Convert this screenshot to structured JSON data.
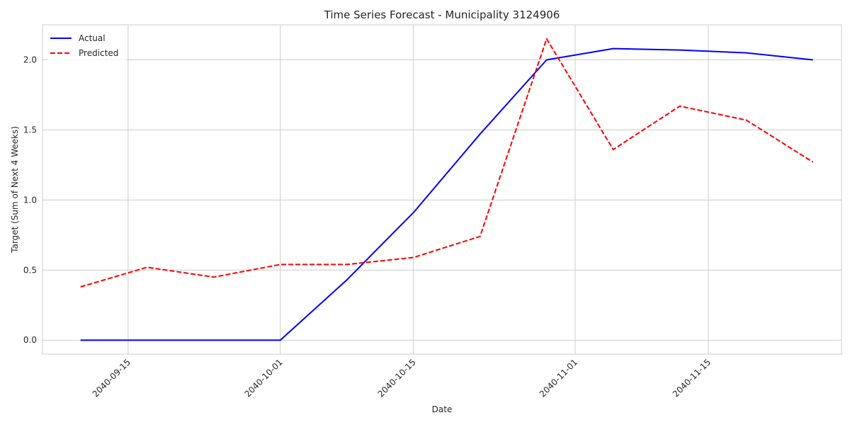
{
  "chart_data": {
    "type": "line",
    "title": "Time Series Forecast - Municipality 3124906",
    "xlabel": "Date",
    "ylabel": "Target (Sum of Next 4 Weeks)",
    "x": [
      "2040-09-10",
      "2040-09-17",
      "2040-09-24",
      "2040-10-01",
      "2040-10-08",
      "2040-10-15",
      "2040-10-22",
      "2040-10-29",
      "2040-11-05",
      "2040-11-12",
      "2040-11-19",
      "2040-11-26"
    ],
    "xlim": [
      "2040-09-06",
      "2040-11-29"
    ],
    "ylim": [
      -0.1,
      2.25
    ],
    "xticks": [
      "2040-09-15",
      "2040-10-01",
      "2040-10-15",
      "2040-11-01",
      "2040-11-15"
    ],
    "yticks": [
      0.0,
      0.5,
      1.0,
      1.5,
      2.0
    ],
    "ytick_labels": [
      "0.0",
      "0.5",
      "1.0",
      "1.5",
      "2.0"
    ],
    "grid": true,
    "legend_position": "top-left",
    "series": [
      {
        "name": "Actual",
        "color": "#0000ff",
        "style": "solid",
        "values": [
          0.0,
          0.0,
          0.0,
          0.0,
          0.43,
          0.91,
          1.47,
          2.0,
          2.08,
          2.07,
          2.05,
          2.0
        ]
      },
      {
        "name": "Predicted",
        "color": "#ff0000",
        "style": "dashed",
        "values": [
          0.38,
          0.52,
          0.45,
          0.54,
          0.54,
          0.59,
          0.74,
          2.15,
          1.36,
          1.67,
          1.57,
          1.27
        ]
      }
    ]
  }
}
